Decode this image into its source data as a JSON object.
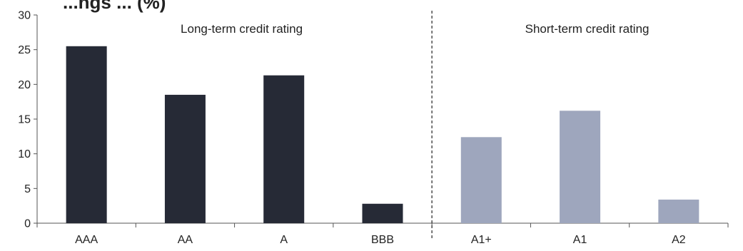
{
  "chart_data": {
    "type": "bar",
    "title": "...ngs ... (%)",
    "xlabel": "",
    "ylabel": "",
    "ylim": [
      0,
      30
    ],
    "yticks": [
      0,
      5,
      10,
      15,
      20,
      25,
      30
    ],
    "grid": false,
    "categories": [
      "AAA",
      "AA",
      "A",
      "BBB",
      "A1+",
      "A1",
      "A2"
    ],
    "values": [
      25.5,
      18.5,
      21.3,
      2.8,
      12.4,
      16.2,
      3.4
    ],
    "bar_colors": [
      "#262a36",
      "#262a36",
      "#262a36",
      "#262a36",
      "#9ea6bd",
      "#9ea6bd",
      "#9ea6bd"
    ],
    "groups": [
      {
        "label": "Long-term credit rating",
        "categories": [
          "AAA",
          "AA",
          "A",
          "BBB"
        ],
        "color": "#262a36"
      },
      {
        "label": "Short-term credit rating",
        "categories": [
          "A1+",
          "A1",
          "A2"
        ],
        "color": "#9ea6bd"
      }
    ],
    "divider_after_category": "BBB",
    "divider_style": "dashed"
  }
}
